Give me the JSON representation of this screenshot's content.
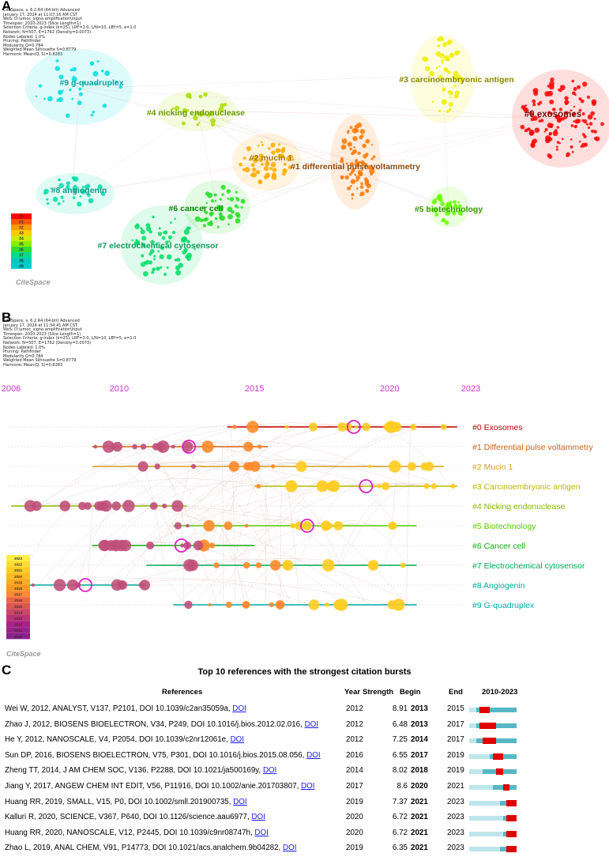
{
  "panels": {
    "a": "A",
    "b": "B",
    "c": "C"
  },
  "meta_a": "CiteSpace, v. 6.2.R4 (64-bit) Advanced\nJanuary 17, 2024 at 11:07:16 AM CST\nWoS: D:\\umoc_signa amplification\\input\nTimespan: 2010-2023 (Slice Length=1)\nSelection Criteria: g-index (k=25), LRF=3.0, L/N=10, LBY=5, e=1.0\nNetwork: N=507, E=1762 (Density=0.0073)\nNodes Labeled: 1.0%\nPruning: Pathfinder\nModularity Q=0.784\nWeighted Mean Silhouette S=0.8779\nHarmonic Mean(Q, S)=0.8283",
  "meta_b": "CiteSpace, v. 6.2.R4 (64-bit) Advanced\nJanuary 17, 2024 at 11:34:41 AM CST\nWoS: D:\\umoc_signa amplification\\input\nTimespan: 2010-2023 (Slice Length=1)\nSelection Criteria: g-index (k=25), LRF=3.0, L/N=10, LBY=5, e=1.0\nNetwork: N=507, E=1762 (Density=0.0073)\nNodes Labeled: 1.0%\nPruning: Pathfinder\nModularity Q=0.784\nWeighted Mean Silhouette S=0.8779\nHarmonic Mean(Q, S)=0.8283",
  "logo": "CiteSpace",
  "chart_data": [
    {
      "type": "network",
      "panel": "A",
      "clusters": [
        {
          "label": "#0 exosomes",
          "color": "#ff0000"
        },
        {
          "label": "#1 differential pulse voltammetry",
          "color": "#ff7700"
        },
        {
          "label": "#2 mucin 1",
          "color": "#ffaa00"
        },
        {
          "label": "#3 carcinoembryonic antigen",
          "color": "#eeee00"
        },
        {
          "label": "#4 nicking endonuclease",
          "color": "#aadd00"
        },
        {
          "label": "#5 biotechnology",
          "color": "#66ff00"
        },
        {
          "label": "#6 cancer cell",
          "color": "#22dd22"
        },
        {
          "label": "#7 electrochemical cytosensor",
          "color": "#00dd66"
        },
        {
          "label": "#8 angiogenin",
          "color": "#00ddaa"
        },
        {
          "label": "#9 g-quadruplex",
          "color": "#00dddd"
        }
      ],
      "legend": [
        "#0",
        "#1",
        "#2",
        "#3",
        "#4",
        "#5",
        "#6",
        "#7",
        "#8",
        "#9"
      ]
    },
    {
      "type": "timeline",
      "panel": "B",
      "year_labels": [
        "2006",
        "2010",
        "2015",
        "2020",
        "2023"
      ],
      "year_range": [
        2006,
        2023
      ],
      "clusters": [
        {
          "label": "#0 Exosomes",
          "color": "#c00000"
        },
        {
          "label": "#1 Differential pulse voltammetry",
          "color": "#d06010"
        },
        {
          "label": "#2 Mucin 1",
          "color": "#d4a020"
        },
        {
          "label": "#3 Carcinoembryonic antigen",
          "color": "#b8b800"
        },
        {
          "label": "#4 Nicking endonuclease",
          "color": "#88b800"
        },
        {
          "label": "#5 Biotechnology",
          "color": "#55cc00"
        },
        {
          "label": "#6 Cancer cell",
          "color": "#11aa11"
        },
        {
          "label": "#7 Electrochemical cytosensor",
          "color": "#00aa55"
        },
        {
          "label": "#8 Angiogenin",
          "color": "#00aa99"
        },
        {
          "label": "#9 G-quadruplex",
          "color": "#00aaaa"
        }
      ],
      "legend_years": [
        "2023",
        "2022",
        "2021",
        "2020",
        "2019",
        "2018",
        "2017",
        "2016",
        "2015",
        "2014",
        "2013",
        "2012",
        "2011",
        "2010"
      ]
    },
    {
      "type": "table",
      "panel": "C",
      "title": "Top 10 references with the strongest citation bursts",
      "columns": [
        "References",
        "Year",
        "Strength",
        "Begin",
        "End",
        "2010-2023"
      ],
      "range": [
        2010,
        2023
      ],
      "rows": [
        {
          "ref": "Wei W, 2012, ANALYST, V137, P2101, DOI 10.1039/c2an35059a,",
          "year": 2012,
          "strength": 8.91,
          "begin": 2013,
          "end": 2015
        },
        {
          "ref": "Zhao J, 2012, BIOSENS BIOELECTRON, V34, P249, DOI 10.1016/j.bios.2012.02.016,",
          "year": 2012,
          "strength": 6.48,
          "begin": 2013,
          "end": 2017
        },
        {
          "ref": "He Y, 2012, NANOSCALE, V4, P2054, DOI 10.1039/c2nr12061e,",
          "year": 2012,
          "strength": 7.25,
          "begin": 2014,
          "end": 2017
        },
        {
          "ref": "Sun DP, 2016, BIOSENS BIOELECTRON, V75, P301, DOI 10.1016/j.bios.2015.08.056,",
          "year": 2016,
          "strength": 6.55,
          "begin": 2017,
          "end": 2019
        },
        {
          "ref": "Zheng TT, 2014, J AM CHEM SOC, V136, P2288, DOI 10.1021/ja500169y,",
          "year": 2014,
          "strength": 8.02,
          "begin": 2018,
          "end": 2019
        },
        {
          "ref": "Jiang Y, 2017, ANGEW CHEM INT EDIT, V56, P11916, DOI 10.1002/anie.201703807,",
          "year": 2017,
          "strength": 8.6,
          "begin": 2020,
          "end": 2021
        },
        {
          "ref": "Huang RR, 2019, SMALL, V15, P0, DOI 10.1002/smll.201900735,",
          "year": 2019,
          "strength": 7.37,
          "begin": 2021,
          "end": 2023
        },
        {
          "ref": "Kalluri R, 2020, SCIENCE, V367, P640, DOI 10.1126/science.aau6977,",
          "year": 2020,
          "strength": 6.72,
          "begin": 2021,
          "end": 2023
        },
        {
          "ref": "Huang RR, 2020, NANOSCALE, V12, P2445, DOI 10.1039/c9nr08747h,",
          "year": 2020,
          "strength": 6.72,
          "begin": 2021,
          "end": 2023
        },
        {
          "ref": "Zhao L, 2019, ANAL CHEM, V91, P14773, DOI 10.1021/acs.analchem.9b04282,",
          "year": 2019,
          "strength": 6.35,
          "begin": 2021,
          "end": 2023
        }
      ],
      "link_text": "DOI"
    }
  ]
}
